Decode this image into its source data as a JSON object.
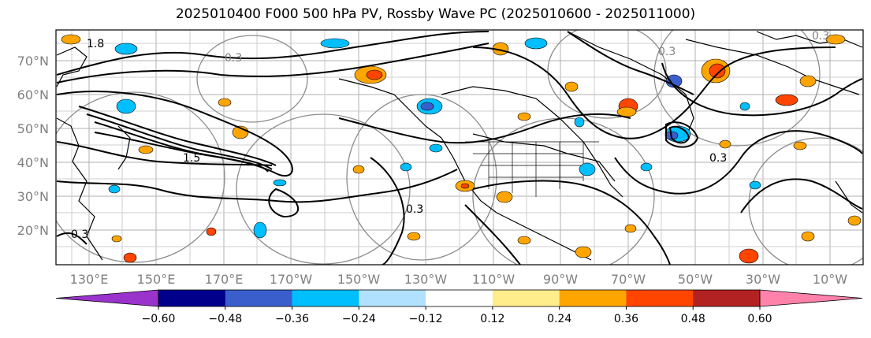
{
  "title": "2025010400 F000 500 hPa PV, Rossby Wave PC (2025010600 - 2025011000)",
  "map": {
    "lat_labels": [
      "70°N",
      "60°N",
      "50°N",
      "40°N",
      "30°N",
      "20°N"
    ],
    "lon_labels": [
      "130°E",
      "150°E",
      "170°E",
      "170°W",
      "150°W",
      "130°W",
      "110°W",
      "90°W",
      "70°W",
      "50°W",
      "30°W",
      "10°W"
    ],
    "contour_labels": [
      {
        "text": "1.8",
        "color": "#000000"
      },
      {
        "text": "0.3",
        "color": "#808080"
      },
      {
        "text": "1.5",
        "color": "#000000"
      },
      {
        "text": "0.3",
        "color": "#000000"
      },
      {
        "text": "0.3",
        "color": "#808080"
      },
      {
        "text": "0.3",
        "color": "#000000"
      },
      {
        "text": "0.3",
        "color": "#000000"
      },
      {
        "text": "0.3",
        "color": "#808080"
      }
    ]
  },
  "colorbar": {
    "tick_labels": [
      "−0.60",
      "−0.48",
      "−0.36",
      "−0.24",
      "−0.12",
      "0.12",
      "0.24",
      "0.36",
      "0.48",
      "0.60"
    ],
    "colors": [
      "#9933cc",
      "#00008b",
      "#3a5fcd",
      "#00bfff",
      "#b0e2ff",
      "#ffffff",
      "#ffec8b",
      "#ffa500",
      "#ff4500",
      "#b22222",
      "#ff82ab"
    ]
  }
}
